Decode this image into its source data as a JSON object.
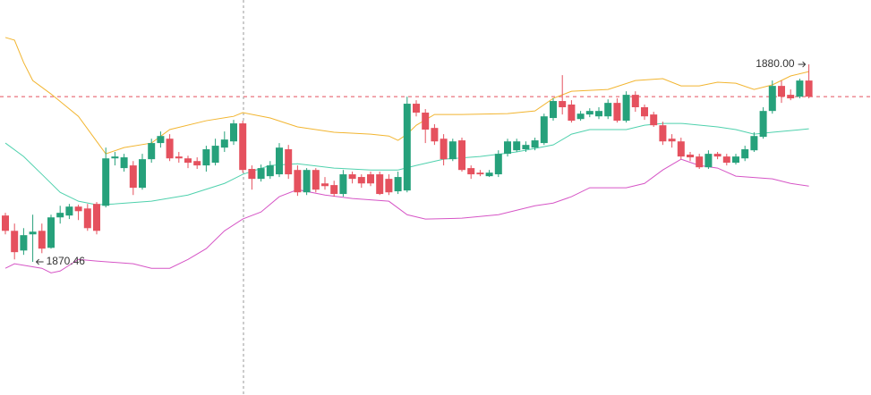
{
  "chart_data": {
    "type": "candlestick",
    "ylim": [
      1864.03,
      1883.11
    ],
    "up_color": "#26a17b",
    "down_color": "#e5515e",
    "candles": [
      [
        1872.7,
        1872.83,
        1871.79,
        1871.96
      ],
      [
        1871.96,
        1872.31,
        1870.58,
        1870.93
      ],
      [
        1871.01,
        1872.09,
        1870.8,
        1871.75
      ],
      [
        1871.79,
        1872.74,
        1870.46,
        1871.92
      ],
      [
        1871.96,
        1872.31,
        1870.88,
        1871.1
      ],
      [
        1871.14,
        1872.74,
        1871.1,
        1872.61
      ],
      [
        1872.61,
        1873.17,
        1872.31,
        1872.83
      ],
      [
        1872.7,
        1873.26,
        1872.53,
        1873.13
      ],
      [
        1873.13,
        1873.22,
        1872.48,
        1872.91
      ],
      [
        1873.04,
        1873.26,
        1871.96,
        1872.09
      ],
      [
        1873.26,
        1873.35,
        1871.79,
        1871.96
      ],
      [
        1873.17,
        1875.98,
        1873.09,
        1875.46
      ],
      [
        1875.46,
        1875.77,
        1875.12,
        1875.55
      ],
      [
        1874.99,
        1875.68,
        1874.82,
        1875.51
      ],
      [
        1875.12,
        1875.33,
        1873.69,
        1874.04
      ],
      [
        1874.04,
        1875.68,
        1873.95,
        1875.42
      ],
      [
        1875.42,
        1876.41,
        1875.25,
        1876.2
      ],
      [
        1876.2,
        1876.76,
        1875.98,
        1876.54
      ],
      [
        1876.41,
        1876.63,
        1875.33,
        1875.46
      ],
      [
        1875.55,
        1875.77,
        1875.25,
        1875.46
      ],
      [
        1875.46,
        1875.59,
        1874.99,
        1875.25
      ],
      [
        1875.33,
        1875.51,
        1874.95,
        1875.12
      ],
      [
        1875.12,
        1876.07,
        1874.82,
        1875.9
      ],
      [
        1875.25,
        1876.41,
        1875.12,
        1876.07
      ],
      [
        1875.98,
        1876.76,
        1875.77,
        1876.37
      ],
      [
        1876.28,
        1877.32,
        1876.11,
        1877.15
      ],
      [
        1877.15,
        1877.28,
        1874.77,
        1874.9
      ],
      [
        1874.95,
        1875.12,
        1873.95,
        1874.47
      ],
      [
        1874.47,
        1875.16,
        1874.34,
        1874.99
      ],
      [
        1874.6,
        1875.33,
        1874.47,
        1875.12
      ],
      [
        1874.69,
        1876.2,
        1874.56,
        1875.98
      ],
      [
        1875.9,
        1876.11,
        1874.47,
        1874.69
      ],
      [
        1874.9,
        1875.12,
        1873.65,
        1873.82
      ],
      [
        1873.82,
        1874.99,
        1873.69,
        1874.9
      ],
      [
        1874.9,
        1874.99,
        1873.82,
        1873.95
      ],
      [
        1874.25,
        1874.56,
        1873.95,
        1874.12
      ],
      [
        1874.17,
        1874.38,
        1873.61,
        1873.74
      ],
      [
        1873.74,
        1874.9,
        1873.61,
        1874.69
      ],
      [
        1874.69,
        1874.82,
        1874.25,
        1874.47
      ],
      [
        1874.56,
        1874.69,
        1874.04,
        1874.25
      ],
      [
        1874.69,
        1874.82,
        1874.12,
        1874.25
      ],
      [
        1874.69,
        1874.82,
        1873.69,
        1873.74
      ],
      [
        1874.47,
        1874.69,
        1873.69,
        1873.82
      ],
      [
        1873.87,
        1874.82,
        1873.74,
        1874.56
      ],
      [
        1873.91,
        1878.44,
        1873.82,
        1878.1
      ],
      [
        1878.1,
        1878.27,
        1877.49,
        1877.67
      ],
      [
        1877.67,
        1877.84,
        1876.2,
        1876.85
      ],
      [
        1876.93,
        1877.11,
        1876.11,
        1876.28
      ],
      [
        1876.41,
        1876.63,
        1875.12,
        1875.42
      ],
      [
        1875.42,
        1876.41,
        1875.33,
        1876.28
      ],
      [
        1876.33,
        1876.46,
        1874.82,
        1874.9
      ],
      [
        1874.99,
        1875.12,
        1874.47,
        1874.69
      ],
      [
        1874.77,
        1874.9,
        1874.6,
        1874.69
      ],
      [
        1874.6,
        1874.9,
        1874.56,
        1874.77
      ],
      [
        1874.69,
        1875.85,
        1874.56,
        1875.68
      ],
      [
        1875.68,
        1876.41,
        1875.55,
        1876.28
      ],
      [
        1875.85,
        1876.41,
        1875.77,
        1876.28
      ],
      [
        1875.9,
        1876.28,
        1875.77,
        1876.11
      ],
      [
        1875.98,
        1876.46,
        1875.85,
        1876.33
      ],
      [
        1876.2,
        1877.62,
        1876.11,
        1877.49
      ],
      [
        1877.41,
        1878.36,
        1877.28,
        1878.23
      ],
      [
        1878.23,
        1879.48,
        1877.58,
        1877.93
      ],
      [
        1878.06,
        1878.27,
        1877.19,
        1877.28
      ],
      [
        1877.36,
        1877.75,
        1877.28,
        1877.62
      ],
      [
        1877.58,
        1877.88,
        1877.45,
        1877.75
      ],
      [
        1877.49,
        1877.93,
        1877.36,
        1877.75
      ],
      [
        1877.49,
        1878.31,
        1877.36,
        1878.14
      ],
      [
        1878.14,
        1878.36,
        1877.19,
        1877.28
      ],
      [
        1877.28,
        1878.7,
        1877.19,
        1878.53
      ],
      [
        1878.53,
        1878.7,
        1877.71,
        1877.93
      ],
      [
        1877.93,
        1878.06,
        1877.32,
        1877.49
      ],
      [
        1877.58,
        1877.71,
        1876.98,
        1877.06
      ],
      [
        1877.06,
        1877.23,
        1876.11,
        1876.28
      ],
      [
        1876.41,
        1876.63,
        1875.98,
        1876.28
      ],
      [
        1876.28,
        1876.46,
        1875.42,
        1875.55
      ],
      [
        1875.64,
        1875.77,
        1875.33,
        1875.51
      ],
      [
        1875.55,
        1875.68,
        1874.95,
        1875.03
      ],
      [
        1875.03,
        1875.85,
        1874.95,
        1875.68
      ],
      [
        1875.68,
        1875.77,
        1875.42,
        1875.55
      ],
      [
        1875.55,
        1875.68,
        1875.12,
        1875.25
      ],
      [
        1875.25,
        1875.68,
        1875.16,
        1875.55
      ],
      [
        1875.46,
        1876.07,
        1875.33,
        1875.9
      ],
      [
        1875.85,
        1876.72,
        1875.77,
        1876.54
      ],
      [
        1876.5,
        1877.93,
        1876.41,
        1877.75
      ],
      [
        1877.75,
        1879.22,
        1877.62,
        1878.96
      ],
      [
        1878.96,
        1879.22,
        1878.14,
        1878.44
      ],
      [
        1878.53,
        1878.79,
        1878.27,
        1878.36
      ],
      [
        1878.44,
        1879.31,
        1878.36,
        1879.22
      ],
      [
        1879.22,
        1880.0,
        1878.36,
        1878.44
      ]
    ],
    "bands": [
      {
        "color": "#f2b530",
        "x": [
          0,
          1,
          2,
          3,
          5,
          8,
          10,
          11,
          13,
          16,
          18,
          22,
          25,
          26,
          29,
          32,
          36,
          40,
          42,
          43,
          44,
          45,
          47,
          50,
          55,
          58,
          60,
          62,
          66,
          69,
          72,
          74,
          76,
          78,
          80,
          82,
          84,
          86,
          88
        ],
        "values": [
          1881.3,
          1881.17,
          1880.09,
          1879.22,
          1878.57,
          1877.49,
          1876.28,
          1875.68,
          1875.98,
          1876.2,
          1876.85,
          1877.28,
          1877.49,
          1877.67,
          1877.41,
          1876.98,
          1876.72,
          1876.63,
          1876.54,
          1876.33,
          1876.63,
          1877.06,
          1877.58,
          1877.58,
          1877.62,
          1877.75,
          1878.36,
          1878.7,
          1878.79,
          1879.22,
          1879.31,
          1878.96,
          1878.96,
          1879.14,
          1879.09,
          1878.79,
          1879.01,
          1879.44,
          1879.65
        ]
      },
      {
        "color": "#4fd1ad",
        "x": [
          0,
          2,
          4,
          6,
          8,
          10,
          12,
          16,
          20,
          24,
          26,
          29,
          32,
          36,
          40,
          43,
          45,
          48,
          52,
          56,
          60,
          62,
          64,
          68,
          70,
          72,
          74,
          78,
          80,
          82,
          84,
          86,
          88
        ],
        "values": [
          1876.2,
          1875.55,
          1874.69,
          1873.82,
          1873.39,
          1873.22,
          1873.26,
          1873.39,
          1873.69,
          1874.25,
          1874.69,
          1875.12,
          1875.2,
          1874.99,
          1874.9,
          1874.9,
          1875.12,
          1875.42,
          1875.55,
          1875.77,
          1876.11,
          1876.63,
          1876.85,
          1876.85,
          1877.06,
          1877.15,
          1877.15,
          1876.98,
          1876.85,
          1876.63,
          1876.72,
          1876.8,
          1876.89
        ]
      },
      {
        "color": "#d655c6",
        "x": [
          0,
          1,
          4,
          5,
          6,
          8,
          10,
          14,
          16,
          18,
          20,
          22,
          24,
          26,
          28,
          30,
          32,
          35,
          38,
          42,
          44,
          46,
          50,
          54,
          58,
          60,
          62,
          64,
          68,
          70,
          72,
          74,
          76,
          78,
          80,
          84,
          86,
          88
        ],
        "values": [
          1870.15,
          1870.37,
          1870.15,
          1869.93,
          1870.02,
          1870.58,
          1870.5,
          1870.37,
          1870.15,
          1870.15,
          1870.58,
          1871.1,
          1871.96,
          1872.53,
          1872.87,
          1873.61,
          1873.95,
          1873.69,
          1873.52,
          1873.39,
          1872.74,
          1872.53,
          1872.57,
          1872.74,
          1873.17,
          1873.3,
          1873.61,
          1874.04,
          1874.04,
          1874.25,
          1874.9,
          1875.42,
          1875.12,
          1874.99,
          1874.6,
          1874.47,
          1874.25,
          1874.12
        ]
      }
    ],
    "min_label": "1870.46",
    "max_label": "1880.00"
  }
}
